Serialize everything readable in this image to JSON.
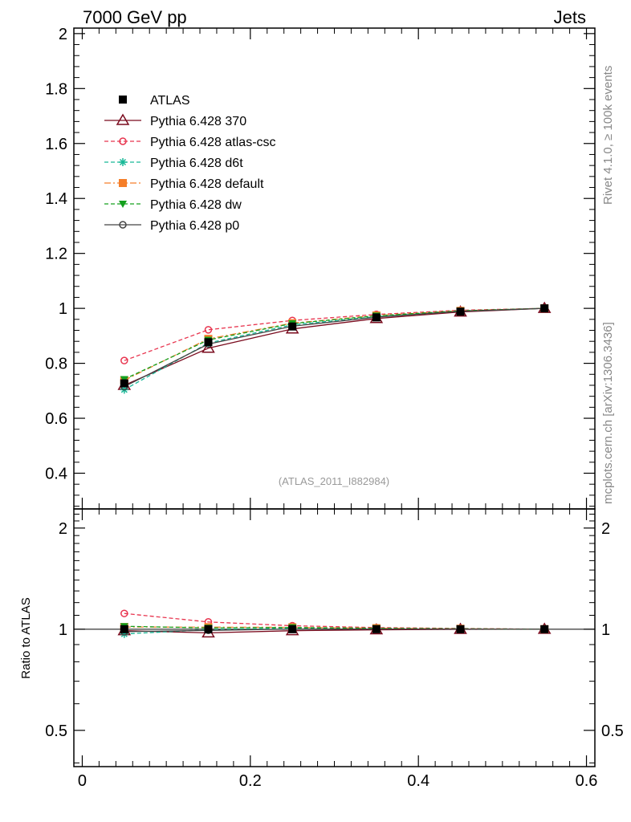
{
  "header": {
    "left": "7000 GeV pp",
    "right": "Jets"
  },
  "side_labels": {
    "rivet": "Rivet 4.1.0, ≥ 100k events",
    "mcplots": "mcplots.cern.ch [arXiv:1306.3436]"
  },
  "analysis_tag": "(ATLAS_2011_I882984)",
  "chart_data": {
    "type": "line",
    "x": [
      0.05,
      0.15,
      0.25,
      0.35,
      0.45,
      0.55
    ],
    "xlim": [
      -0.01,
      0.61
    ],
    "xticks": [
      "0",
      "0.2",
      "0.4",
      "0.6"
    ],
    "main": {
      "ylim": [
        0.27,
        2.02
      ],
      "yticks": [
        "0.4",
        "0.6",
        "0.8",
        "1",
        "1.2",
        "1.4",
        "1.6",
        "1.8",
        "2"
      ]
    },
    "ratio": {
      "ylabel": "Ratio to ATLAS",
      "ylim": [
        0.39,
        2.28
      ],
      "yticks": [
        "0.5",
        "1",
        "2"
      ]
    },
    "series": [
      {
        "name": "ATLAS",
        "color": "#000000",
        "marker": "square-filled",
        "line": "none",
        "values": [
          0.727,
          0.877,
          0.934,
          0.967,
          0.988,
          1.0
        ],
        "ratio": [
          1.0,
          1.0,
          1.0,
          1.0,
          1.0,
          1.0
        ]
      },
      {
        "name": "Pythia 6.428 370",
        "color": "#7a0b1e",
        "marker": "triangle-open",
        "line": "solid",
        "values": [
          0.72,
          0.855,
          0.925,
          0.963,
          0.987,
          1.0
        ],
        "ratio": [
          0.99,
          0.975,
          0.99,
          0.996,
          0.999,
          1.0
        ]
      },
      {
        "name": "Pythia 6.428 atlas-csc",
        "color": "#e8344e",
        "marker": "circle-open",
        "line": "dashed",
        "values": [
          0.81,
          0.922,
          0.956,
          0.978,
          0.993,
          1.0
        ],
        "ratio": [
          1.114,
          1.051,
          1.024,
          1.011,
          1.005,
          1.0
        ]
      },
      {
        "name": "Pythia 6.428 d6t",
        "color": "#17b897",
        "marker": "star",
        "line": "dashed",
        "values": [
          0.704,
          0.874,
          0.94,
          0.97,
          0.99,
          1.0
        ],
        "ratio": [
          0.968,
          0.997,
          1.006,
          1.003,
          1.002,
          1.0
        ]
      },
      {
        "name": "Pythia 6.428 default",
        "color": "#f57f2a",
        "marker": "square-filled",
        "line": "dashdot",
        "values": [
          0.738,
          0.889,
          0.946,
          0.974,
          0.991,
          1.0
        ],
        "ratio": [
          1.015,
          1.014,
          1.013,
          1.007,
          1.003,
          1.0
        ]
      },
      {
        "name": "Pythia 6.428 dw",
        "color": "#14a01e",
        "marker": "triangle-down-filled",
        "line": "dashed",
        "values": [
          0.742,
          0.885,
          0.945,
          0.973,
          0.991,
          1.0
        ],
        "ratio": [
          1.02,
          1.009,
          1.012,
          1.006,
          1.003,
          1.0
        ]
      },
      {
        "name": "Pythia 6.428 p0",
        "color": "#444444",
        "marker": "circle-open",
        "line": "solid",
        "values": [
          0.715,
          0.87,
          0.935,
          0.968,
          0.989,
          1.0
        ],
        "ratio": [
          0.983,
          0.992,
          1.001,
          1.001,
          1.001,
          1.0
        ]
      }
    ]
  }
}
